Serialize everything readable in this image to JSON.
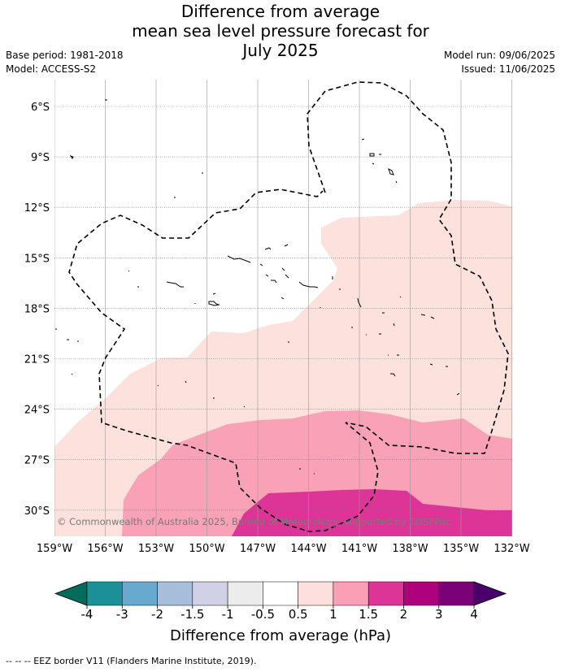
{
  "title": {
    "line1": "Difference from average",
    "line2": "mean sea level pressure forecast for",
    "line3": "July 2025"
  },
  "meta_left": {
    "base_period": "Base period: 1981-2018",
    "model": "Model: ACCESS-S2"
  },
  "meta_right": {
    "model_run": "Model run: 09/06/2025",
    "issued": "Issued: 11/06/2025"
  },
  "map": {
    "lat_labels": [
      "6°S",
      "9°S",
      "12°S",
      "15°S",
      "18°S",
      "21°S",
      "24°S",
      "27°S",
      "30°S"
    ],
    "lon_labels": [
      "159°W",
      "156°W",
      "153°W",
      "150°W",
      "147°W",
      "144°W",
      "141°W",
      "138°W",
      "135°W",
      "132°W"
    ],
    "copyright": "© Commonwealth of Australia 2025, Bureau of Meteorology, supported by COSPPac",
    "colors": {
      "band_0.5_1": "#fde1dd",
      "band_1_1.5": "#f9a1b6",
      "band_1.5_2": "#dd3497",
      "gridline": "#888888"
    }
  },
  "colorbar": {
    "ticks": [
      "-4",
      "-3",
      "-2",
      "-1.5",
      "-1",
      "-0.5",
      "0.5",
      "1",
      "1.5",
      "2",
      "3",
      "4"
    ],
    "label": "Difference from average (hPa)",
    "under_color": "#016c59",
    "over_color": "#49006a",
    "colors": [
      "#1c9099",
      "#67a9cf",
      "#a6bddb",
      "#d0d1e6",
      "#ececec",
      "#ffffff",
      "#fde0dd",
      "#fa9fb5",
      "#dd3497",
      "#ae017e",
      "#7a0177"
    ]
  },
  "footnote": "-- -- -- EEZ border V11 (Flanders Marine Institute, 2019)."
}
